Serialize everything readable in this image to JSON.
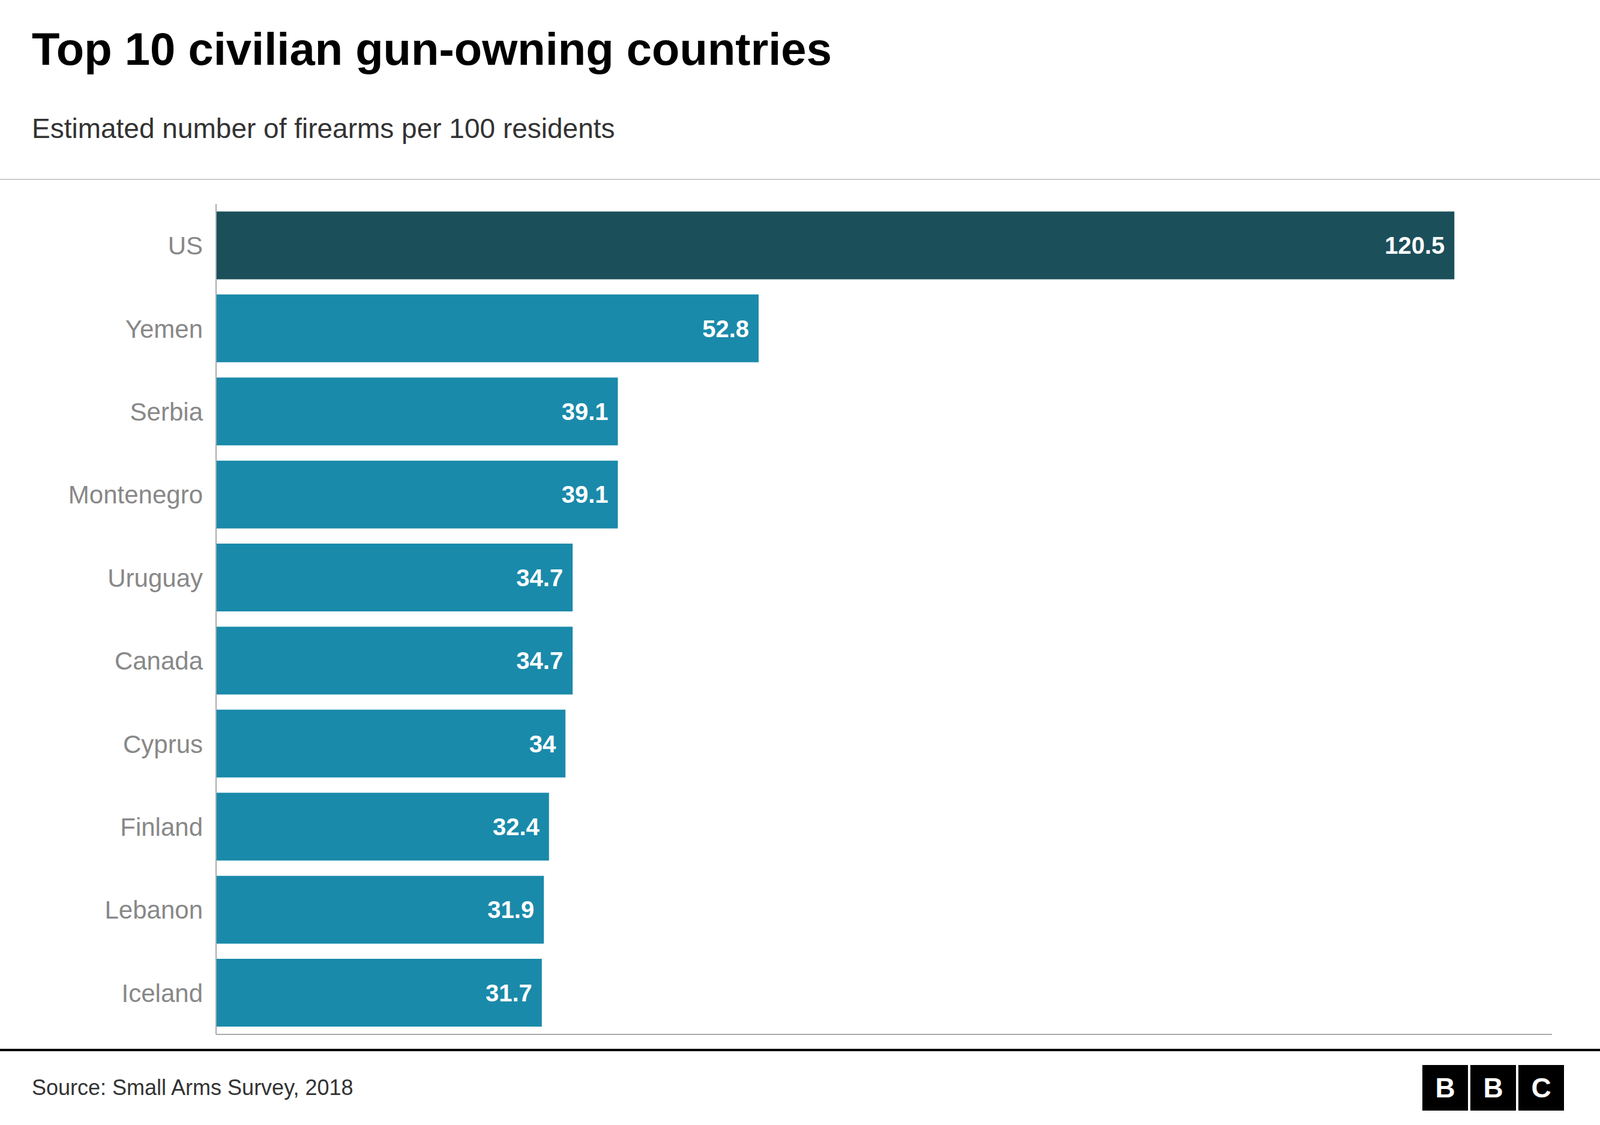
{
  "chart_data": {
    "type": "bar",
    "orientation": "horizontal",
    "title": "Top 10 civilian gun-owning countries",
    "subtitle": "Estimated number of firearms per 100 residents",
    "annotations": [
      "Source: Small Arms Survey, 2018",
      "BBC"
    ],
    "categories": [
      "US",
      "Yemen",
      "Serbia",
      "Montenegro",
      "Uruguay",
      "Canada",
      "Cyprus",
      "Finland",
      "Lebanon",
      "Iceland"
    ],
    "values": [
      120.5,
      52.8,
      39.1,
      39.1,
      34.7,
      34.7,
      34.0,
      32.4,
      31.9,
      31.7
    ],
    "colors": [
      "#1b4f5a",
      "#1a8aaa",
      "#1a8aaa",
      "#1a8aaa",
      "#1a8aaa",
      "#1a8aaa",
      "#1a8aaa",
      "#1a8aaa",
      "#1a8aaa",
      "#1a8aaa"
    ],
    "xlim": [
      0,
      130
    ],
    "xticks": [],
    "grid": false,
    "data_labels": true,
    "tick_labels": "y"
  }
}
